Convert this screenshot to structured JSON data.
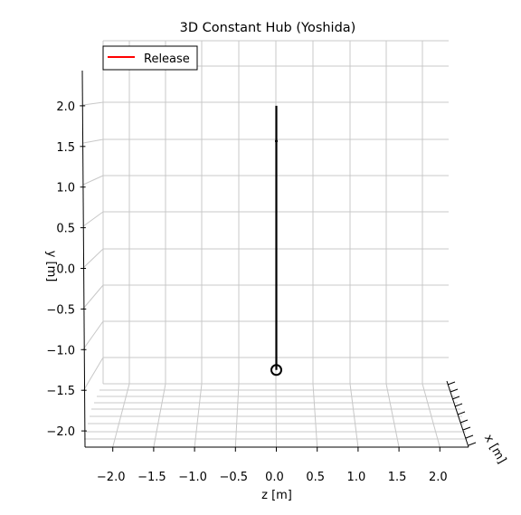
{
  "chart_data": {
    "type": "line",
    "title": "3D Constant Hub (Yoshida)",
    "xlabel": "z [m]",
    "ylabel": "y [m]",
    "zlabel": "x [m]",
    "legend": {
      "position": "top-left",
      "entries": [
        {
          "label": "Release",
          "color": "#ff0000"
        }
      ]
    },
    "z_ticks": [
      -2.0,
      -1.5,
      -1.0,
      -0.5,
      0.0,
      0.5,
      1.0,
      1.5,
      2.0
    ],
    "y_ticks": [
      -2.0,
      -1.5,
      -1.0,
      -0.5,
      0.0,
      0.5,
      1.0,
      1.5,
      2.0
    ],
    "z_tick_labels": [
      "−2.0",
      "−1.5",
      "−1.0",
      "−0.5",
      "0.0",
      "0.5",
      "1.0",
      "1.5",
      "2.0"
    ],
    "y_tick_labels": [
      "−2.0",
      "−1.5",
      "−1.0",
      "−0.5",
      "0.0",
      "0.5",
      "1.0",
      "1.5",
      "2.0"
    ],
    "zlim": [
      -2.4,
      2.4
    ],
    "ylim": [
      -2.4,
      2.4
    ],
    "grid": true,
    "series": [
      {
        "name": "Release",
        "color": "#ff0000",
        "points": []
      }
    ],
    "rod": {
      "color": "#000000",
      "z": 0.0,
      "y_start": -1.25,
      "y_end": 2.0
    },
    "hub": {
      "z": 0.0,
      "y": -1.25
    }
  }
}
